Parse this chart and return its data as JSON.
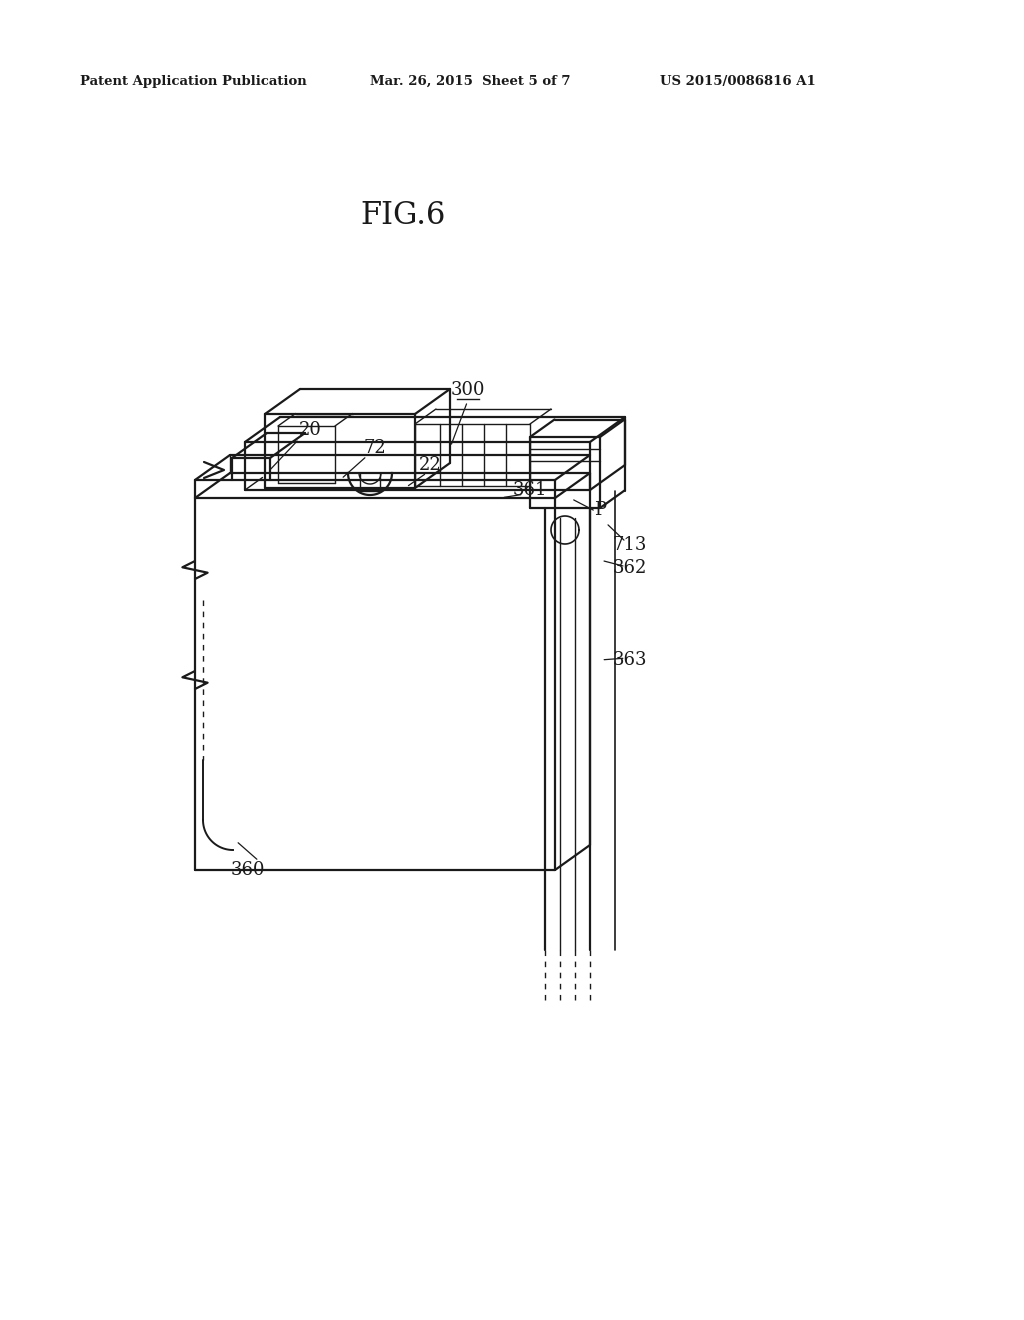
{
  "bg_color": "#ffffff",
  "line_color": "#1a1a1a",
  "header_left": "Patent Application Publication",
  "header_mid": "Mar. 26, 2015  Sheet 5 of 7",
  "header_right": "US 2015/0086816 A1",
  "fig_label": "FIG.6"
}
